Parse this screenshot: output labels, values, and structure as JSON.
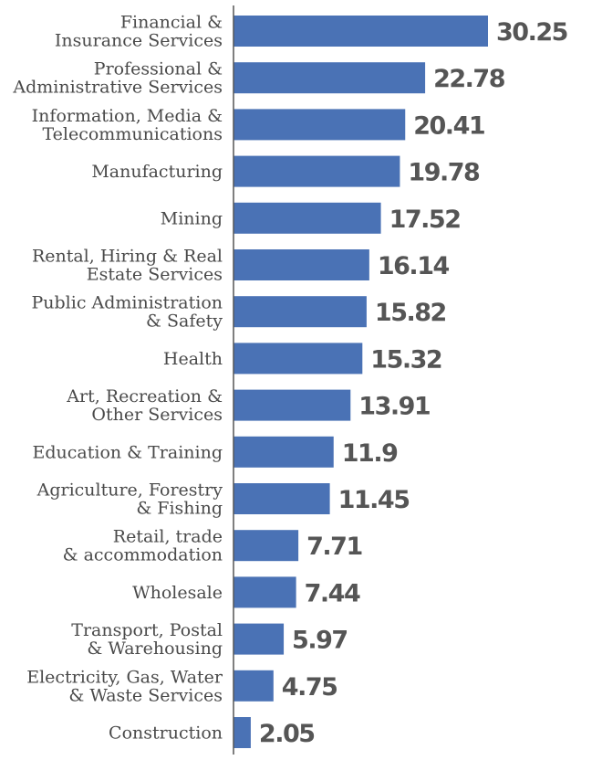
{
  "chart_data": {
    "type": "bar",
    "orientation": "horizontal",
    "categories": [
      [
        "Financial &",
        "Insurance Services"
      ],
      [
        "Professional &",
        "Administrative Services"
      ],
      [
        "Information, Media &",
        "Telecommunications"
      ],
      [
        "Manufacturing"
      ],
      [
        "Mining"
      ],
      [
        "Rental, Hiring & Real",
        "Estate Services"
      ],
      [
        "Public Administration",
        "& Safety"
      ],
      [
        "Health"
      ],
      [
        "Art, Recreation &",
        "Other Services"
      ],
      [
        "Education & Training"
      ],
      [
        "Agriculture, Forestry",
        "& Fishing"
      ],
      [
        "Retail, trade",
        "& accommodation"
      ],
      [
        "Wholesale"
      ],
      [
        "Transport, Postal",
        "& Warehousing"
      ],
      [
        "Electricity, Gas, Water",
        "& Waste Services"
      ],
      [
        "Construction"
      ]
    ],
    "values": [
      30.25,
      22.78,
      20.41,
      19.78,
      17.52,
      16.14,
      15.82,
      15.32,
      13.91,
      11.9,
      11.45,
      7.71,
      7.44,
      5.97,
      4.75,
      2.05
    ],
    "value_labels": [
      "30.25",
      "22.78",
      "20.41",
      "19.78",
      "17.52",
      "16.14",
      "15.82",
      "15.32",
      "13.91",
      "11.9",
      "11.45",
      "7.71",
      "7.44",
      "5.97",
      "4.75",
      "2.05"
    ],
    "title": "",
    "xlabel": "",
    "ylabel": "",
    "xlim": [
      0,
      30.25
    ],
    "grid": false,
    "legend": "none",
    "bar_color": "#4a72b5",
    "axis_color": "#555555"
  }
}
